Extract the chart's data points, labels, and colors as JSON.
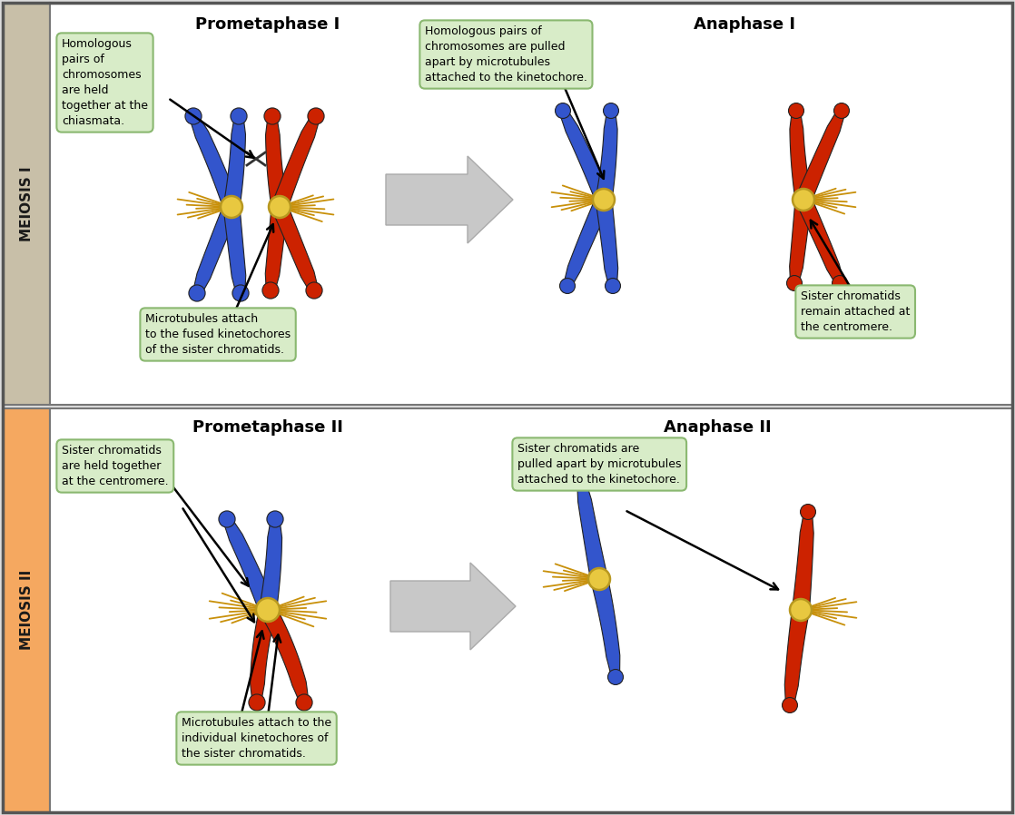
{
  "meiosis1_color": "#c8bfa8",
  "meiosis2_color": "#f5a860",
  "meiosis1_label": "MEIOSIS I",
  "meiosis2_label": "MEIOSIS II",
  "label_color": "#1a1a1a",
  "blue_chr": "#3355cc",
  "red_chr": "#cc2200",
  "kinetochore_color": "#e8c840",
  "kinetochore_outline": "#b89820",
  "microtubule_color": "#c8900a",
  "border_color": "#888888",
  "textbox_bg": "#d8ecc8",
  "textbox_border": "#8ab870",
  "panel_titles": [
    "Prometaphase I",
    "Anaphase I",
    "Prometaphase II",
    "Anaphase II"
  ],
  "annotations": {
    "p1_left": "Homologous\npairs of\nchromosomes\nare held\ntogether at the\nchiasmata.",
    "p1_bottom": "Microtubules attach\nto the fused kinetochores\nof the sister chromatids.",
    "a1_top": "Homologous pairs of\nchromosomes are pulled\napart by microtubules\nattached to the kinetochore.",
    "a1_right": "Sister chromatids\nremain attached at\nthe centromere.",
    "p2_left": "Sister chromatids\nare held together\nat the centromere.",
    "p2_bottom": "Microtubules attach to the\nindividual kinetochores of\nthe sister chromatids.",
    "a2_top": "Sister chromatids are\npulled apart by microtubules\nattached to the kinetochore."
  }
}
